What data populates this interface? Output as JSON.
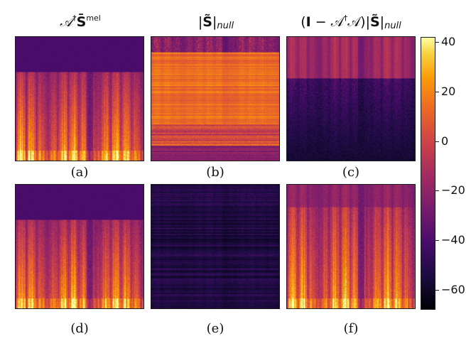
{
  "titles": {
    "a": {
      "prefix": "𝒜",
      "dag": "†",
      "bold": "S̄",
      "sup": "mel"
    },
    "b": {
      "open": "|",
      "bold": "S̃",
      "close": "|",
      "sub": "null"
    },
    "c": {
      "open": "(",
      "bold_i": "I",
      "mid": " − 𝒜",
      "dag": "†",
      "tail": "𝒜)|",
      "bold": "S̃",
      "close": "|",
      "sub": "null"
    }
  },
  "labels": [
    "(a)",
    "(b)",
    "(c)",
    "(d)",
    "(e)",
    "(f)"
  ],
  "colorbar": {
    "colormap": "inferno",
    "min": -68,
    "max": 42,
    "ticks": [
      40,
      20,
      0,
      -20,
      -40,
      -60
    ],
    "tick_labels": [
      "40",
      "20",
      "0",
      "−20",
      "−40",
      "−60"
    ]
  },
  "panels": [
    {
      "id": "a",
      "name": "mel-pseudoinverse-spectrogram",
      "style": "mel"
    },
    {
      "id": "b",
      "name": "null-space-spectrogram",
      "style": "null"
    },
    {
      "id": "c",
      "name": "projected-null-spectrogram",
      "style": "proj"
    },
    {
      "id": "d",
      "name": "mel-pseudoinverse-spectrogram-2",
      "style": "mel"
    },
    {
      "id": "e",
      "name": "null-space-spectrogram-2",
      "style": "dark"
    },
    {
      "id": "f",
      "name": "projected-null-spectrogram-2",
      "style": "full"
    }
  ]
}
